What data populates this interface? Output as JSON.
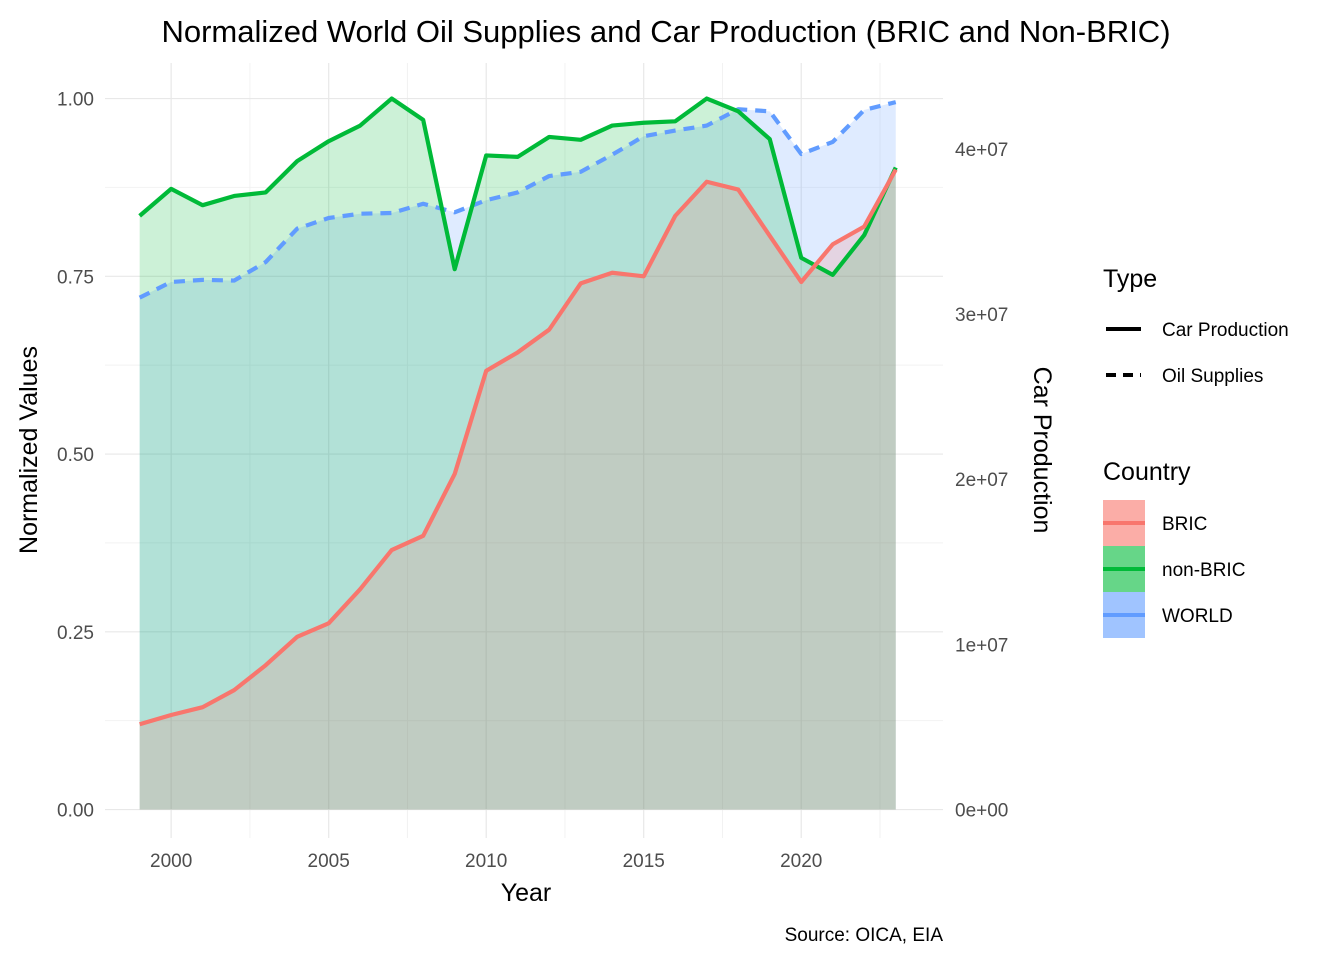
{
  "chart_data": {
    "type": "area",
    "title": "Normalized World Oil Supplies and Car Production (BRIC and Non-BRIC)",
    "xlabel": "Year",
    "ylabel": "Normalized Values",
    "y2label": "Car Production",
    "caption": "Source: OICA, EIA",
    "xlim": [
      1997.9,
      2024.5
    ],
    "ylim": [
      -0.04,
      1.05
    ],
    "x_ticks": [
      2000,
      2005,
      2010,
      2015,
      2020
    ],
    "x_tick_labels": [
      "2000",
      "2005",
      "2010",
      "2015",
      "2020"
    ],
    "y_ticks": [
      0,
      0.25,
      0.5,
      0.75,
      1.0
    ],
    "y_tick_labels": [
      "0.00",
      "0.25",
      "0.50",
      "0.75",
      "1.00"
    ],
    "y2_ticks": [
      0,
      0.2323,
      0.4646,
      0.6969,
      0.9292
    ],
    "y2_tick_labels": [
      "0e+00",
      "1e+07",
      "2e+07",
      "3e+07",
      "4e+07"
    ],
    "grid": true,
    "legend_position": "right",
    "x": [
      1999,
      2000,
      2001,
      2002,
      2003,
      2004,
      2005,
      2006,
      2007,
      2008,
      2009,
      2010,
      2011,
      2012,
      2013,
      2014,
      2015,
      2016,
      2017,
      2018,
      2019,
      2020,
      2021,
      2022,
      2023
    ],
    "series": [
      {
        "name": "BRIC",
        "type": "Car Production",
        "color": "#F8766D",
        "values": [
          0.12,
          0.133,
          0.144,
          0.168,
          0.203,
          0.243,
          0.262,
          0.31,
          0.365,
          0.385,
          0.472,
          0.617,
          0.643,
          0.675,
          0.74,
          0.755,
          0.75,
          0.835,
          0.883,
          0.872,
          0.807,
          0.742,
          0.795,
          0.82,
          0.9
        ]
      },
      {
        "name": "non-BRIC",
        "type": "Car Production",
        "color": "#00BA38",
        "values": [
          0.835,
          0.873,
          0.85,
          0.863,
          0.868,
          0.912,
          0.94,
          0.962,
          1.0,
          0.97,
          0.76,
          0.92,
          0.918,
          0.946,
          0.942,
          0.962,
          0.966,
          0.968,
          1.0,
          0.982,
          0.943,
          0.776,
          0.752,
          0.808,
          0.903
        ]
      },
      {
        "name": "WORLD",
        "type": "Oil Supplies",
        "color": "#619CFF",
        "values": [
          0.72,
          0.742,
          0.745,
          0.744,
          0.77,
          0.817,
          0.832,
          0.838,
          0.839,
          0.852,
          0.84,
          0.857,
          0.868,
          0.891,
          0.897,
          0.921,
          0.947,
          0.955,
          0.962,
          0.985,
          0.982,
          0.922,
          0.939,
          0.984,
          0.995
        ]
      }
    ],
    "legend": {
      "type_title": "Type",
      "type_items": [
        {
          "label": "Car Production",
          "linetype": "solid"
        },
        {
          "label": "Oil Supplies",
          "linetype": "dashed"
        }
      ],
      "country_title": "Country",
      "country_items": [
        {
          "label": "BRIC",
          "color": "#F8766D"
        },
        {
          "label": "non-BRIC",
          "color": "#00BA38"
        },
        {
          "label": "WORLD",
          "color": "#619CFF"
        }
      ]
    }
  }
}
